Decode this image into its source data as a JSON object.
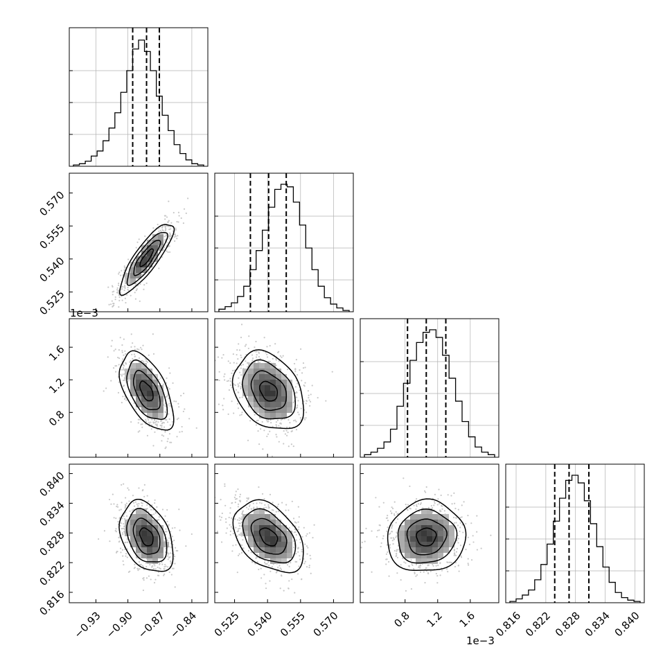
{
  "chart_data": {
    "type": "corner",
    "description_of_parameters": "4-parameter posterior corner plot (unnamed axes)",
    "parameters": [
      {
        "index": 0,
        "range": [
          -0.955,
          -0.825
        ],
        "ticks": [
          -0.93,
          -0.9,
          -0.87,
          -0.84
        ],
        "tick_labels": [
          "−0.93",
          "−0.90",
          "−0.87",
          "−0.84"
        ],
        "quantiles": [
          -0.8955,
          -0.8825,
          -0.8705
        ],
        "offset_label": ""
      },
      {
        "index": 1,
        "range": [
          0.516,
          0.579
        ],
        "ticks": [
          0.525,
          0.54,
          0.555,
          0.57
        ],
        "tick_labels": [
          "0.525",
          "0.540",
          "0.555",
          "0.570"
        ],
        "quantiles": [
          0.5322,
          0.5405,
          0.5485
        ],
        "offset_label": ""
      },
      {
        "index": 2,
        "range": [
          0.00025,
          0.00195
        ],
        "ticks": [
          0.0008,
          0.0012,
          0.0016
        ],
        "tick_labels": [
          "0.8",
          "1.2",
          "1.6"
        ],
        "quantiles": [
          0.00083,
          0.00106,
          0.0013
        ],
        "offset_label": "1e−3"
      },
      {
        "index": 3,
        "range": [
          0.8139,
          0.8419
        ],
        "ticks": [
          0.816,
          0.822,
          0.828,
          0.834,
          0.84
        ],
        "tick_labels": [
          "0.816",
          "0.822",
          "0.828",
          "0.834",
          "0.840"
        ],
        "quantiles": [
          0.8238,
          0.8267,
          0.8307
        ],
        "offset_label": ""
      }
    ],
    "histograms": [
      {
        "param": 0,
        "bin_heights": [
          0.01,
          0.02,
          0.04,
          0.08,
          0.12,
          0.2,
          0.3,
          0.42,
          0.58,
          0.75,
          0.92,
          0.99,
          0.9,
          0.75,
          0.55,
          0.4,
          0.28,
          0.17,
          0.1,
          0.05,
          0.02,
          0.01
        ]
      },
      {
        "param": 1,
        "bin_heights": [
          0.02,
          0.04,
          0.07,
          0.12,
          0.2,
          0.33,
          0.48,
          0.64,
          0.82,
          0.96,
          1.0,
          0.98,
          0.86,
          0.68,
          0.5,
          0.33,
          0.2,
          0.11,
          0.06,
          0.03,
          0.01
        ]
      },
      {
        "param": 2,
        "bin_heights": [
          0.02,
          0.04,
          0.07,
          0.12,
          0.22,
          0.4,
          0.58,
          0.76,
          0.9,
          0.98,
          1.0,
          0.94,
          0.8,
          0.62,
          0.44,
          0.28,
          0.16,
          0.08,
          0.04,
          0.02
        ]
      },
      {
        "param": 3,
        "bin_heights": [
          0.01,
          0.03,
          0.06,
          0.1,
          0.18,
          0.3,
          0.46,
          0.64,
          0.82,
          0.96,
          1.0,
          0.94,
          0.8,
          0.62,
          0.44,
          0.28,
          0.16,
          0.08,
          0.04,
          0.02,
          0.01
        ]
      }
    ],
    "pairs": [
      {
        "x": 0,
        "y": 1,
        "mean": [
          -0.8825,
          0.5405
        ],
        "sd": [
          0.0125,
          0.008
        ],
        "rho": 0.85
      },
      {
        "x": 0,
        "y": 2,
        "mean": [
          -0.8825,
          0.00106
        ],
        "sd": [
          0.0125,
          0.00024
        ],
        "rho": -0.55
      },
      {
        "x": 1,
        "y": 2,
        "mean": [
          0.5405,
          0.00106
        ],
        "sd": [
          0.008,
          0.00024
        ],
        "rho": -0.3
      },
      {
        "x": 0,
        "y": 3,
        "mean": [
          -0.8825,
          0.8272
        ],
        "sd": [
          0.0125,
          0.0036
        ],
        "rho": -0.35
      },
      {
        "x": 1,
        "y": 3,
        "mean": [
          0.5405,
          0.8272
        ],
        "sd": [
          0.008,
          0.0036
        ],
        "rho": -0.4
      },
      {
        "x": 2,
        "y": 3,
        "mean": [
          0.00106,
          0.8272
        ],
        "sd": [
          0.00024,
          0.0036
        ],
        "rho": 0.05
      }
    ],
    "contour_levels_sigma": [
      0.5,
      1.0,
      1.5,
      2.0
    ],
    "grid": true,
    "quantile_line_style": "dashed",
    "colors": {
      "line": "#000000",
      "grid": "#b0b0b0",
      "points": "#c8c8c8"
    }
  }
}
